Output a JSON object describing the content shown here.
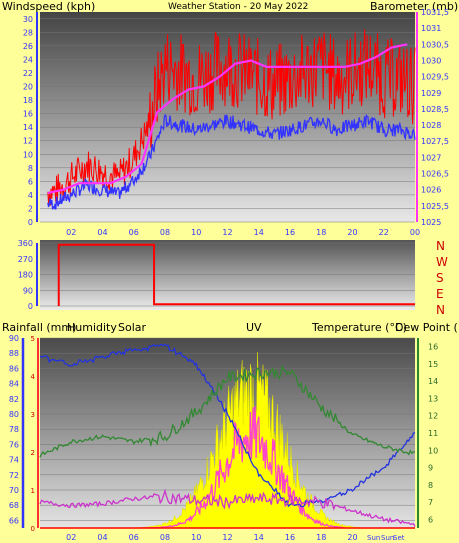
{
  "colors": {
    "background": "#ffff99",
    "wind_speed": "#ff0000",
    "wind_gust": "#3333ff",
    "barometer": "#ff33ff",
    "direction": "#ff0000",
    "rainfall": "#ff0000",
    "humidity": "#2233dd",
    "solar": "#ffff00",
    "uv": "#ff44cc",
    "temperature": "#338833",
    "dew_point": "#cc33cc",
    "axis_left": "#3333ff",
    "axis_right": "#ff33ff",
    "tick_text": "#3333ff"
  },
  "x_ticks": [
    "02",
    "04",
    "06",
    "08",
    "10",
    "12",
    "14",
    "16",
    "18",
    "20",
    "22",
    "00"
  ],
  "x_ticks_bottom": [
    "02",
    "04",
    "06",
    "08",
    "10",
    "12",
    "14",
    "16",
    "18",
    "20"
  ],
  "sun_labels": [
    "Sun",
    "Sun",
    "Set"
  ],
  "chart_data": [
    {
      "type": "line",
      "title": "Weather Station  -  20 May 2022",
      "ylabel_left": "Windspeed (kph)",
      "ylabel_right": "Barometer (mb)",
      "ylim_left": [
        0,
        31
      ],
      "ylim_right": [
        1025,
        1031.5
      ],
      "yticks_left": [
        0,
        2,
        4,
        6,
        8,
        10,
        12,
        14,
        16,
        18,
        20,
        22,
        24,
        26,
        28,
        30
      ],
      "yticks_right": [
        "1025",
        "1025,5",
        "1026",
        "1026,5",
        "1027",
        "1027,5",
        "1028",
        "1028,5",
        "1029",
        "1029,5",
        "1030",
        "1030,5",
        "1031",
        "1031,5"
      ],
      "x": [
        "01",
        "02",
        "03",
        "04",
        "05",
        "06",
        "07",
        "08",
        "09",
        "10",
        "11",
        "12",
        "13",
        "14",
        "15",
        "16",
        "17",
        "18",
        "19",
        "20",
        "21",
        "22",
        "23",
        "00"
      ],
      "series": [
        {
          "name": "Windspeed (kph)",
          "values": [
            4,
            6,
            8,
            7,
            6,
            9,
            14,
            22,
            21,
            20,
            21,
            22,
            21,
            20,
            19,
            20,
            21,
            22,
            20,
            21,
            22,
            20,
            20,
            19
          ]
        },
        {
          "name": "Barometer (mb)",
          "values": [
            1025.9,
            1026.0,
            1026.2,
            1026.2,
            1026.2,
            1026.4,
            1026.8,
            1028.4,
            1028.8,
            1029.1,
            1029.2,
            1029.5,
            1029.9,
            1030.0,
            1029.8,
            1029.8,
            1029.8,
            1029.8,
            1029.8,
            1029.8,
            1029.9,
            1030.1,
            1030.4,
            1030.5
          ]
        }
      ]
    },
    {
      "type": "line",
      "ylim": [
        0,
        360
      ],
      "yticks": [
        0,
        90,
        180,
        270,
        360
      ],
      "direction_labels": [
        "N",
        "W",
        "S",
        "E",
        "N"
      ],
      "x": [
        "00",
        "07",
        "07",
        "00"
      ],
      "series": [
        {
          "name": "Wind direction",
          "values": [
            0,
            350,
            10,
            10
          ]
        }
      ]
    },
    {
      "type": "line",
      "ylabel_rain": "Rainfall (mm)",
      "ylabel_humidity": "Humidity",
      "ylabel_solar": "Solar",
      "ylabel_uv": "UV",
      "ylabel_temp": "Temperature (°C)",
      "ylabel_dew": "Dew Point (°C)",
      "ylim_rain": [
        0,
        5
      ],
      "ylim_humidity": [
        65,
        90
      ],
      "yticks_humidity": [
        66,
        68,
        70,
        72,
        74,
        76,
        78,
        80,
        82,
        84,
        86,
        88,
        90
      ],
      "ylim_temp": [
        5.5,
        16.5
      ],
      "yticks_temp": [
        6,
        7,
        8,
        9,
        10,
        11,
        12,
        13,
        14,
        15,
        16
      ],
      "x": [
        "00",
        "02",
        "04",
        "06",
        "08",
        "10",
        "12",
        "14",
        "16",
        "18",
        "20",
        "22",
        "00"
      ],
      "series": [
        {
          "name": "Humidity",
          "values": [
            87.5,
            86.5,
            87.5,
            88.5,
            89.0,
            86.5,
            80.0,
            72.0,
            68.0,
            68.5,
            70.0,
            73.0,
            77.5
          ]
        },
        {
          "name": "Temperature (°C)",
          "values": [
            9.7,
            10.5,
            10.8,
            10.5,
            10.8,
            12.2,
            14.2,
            14.5,
            14.5,
            12.5,
            10.9,
            10.2,
            9.8
          ]
        },
        {
          "name": "Dew Point (°C)",
          "values": [
            7.0,
            6.8,
            6.9,
            7.2,
            7.3,
            7.1,
            7.0,
            7.2,
            7.1,
            7.0,
            6.5,
            6.0,
            5.7
          ]
        },
        {
          "name": "Rainfall (mm)",
          "values": [
            0,
            0,
            0,
            0,
            0,
            0,
            0,
            0,
            0,
            0,
            0,
            0,
            0
          ]
        }
      ],
      "solar_peak_hour": 13.5,
      "uv_peak_hour": 13.5
    }
  ]
}
